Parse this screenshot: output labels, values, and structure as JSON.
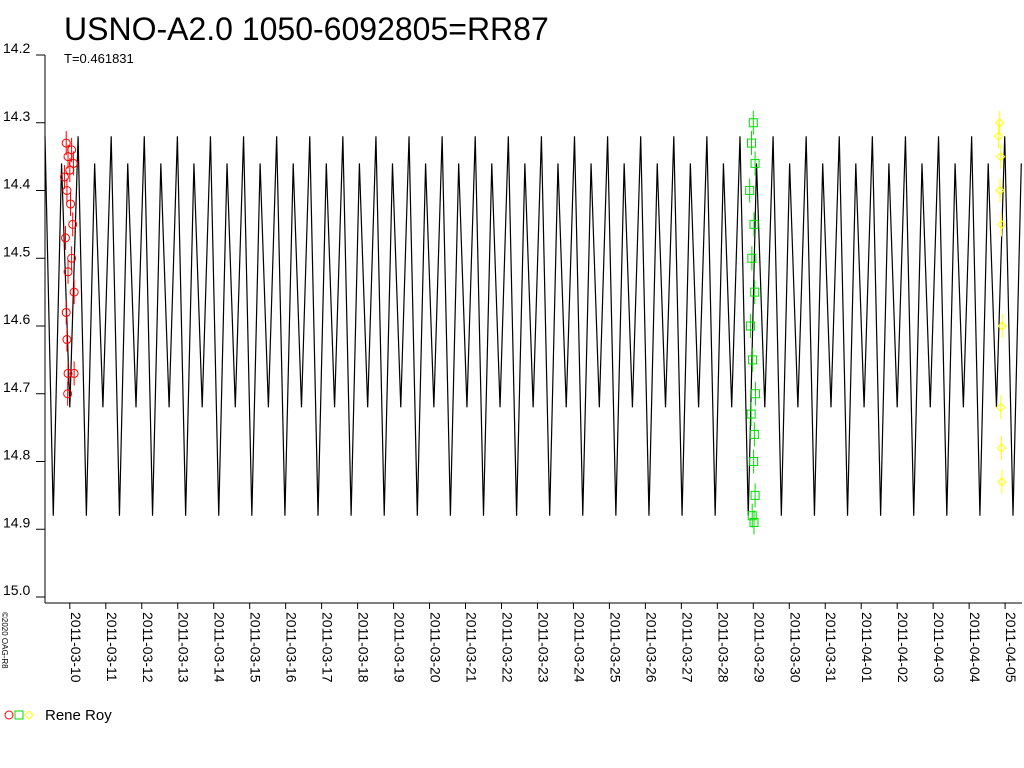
{
  "chart_data": {
    "type": "line",
    "title": "USNO-A2.0 1050-6092805=RR87",
    "subtitle": "T=0.461831",
    "credit": "©2020 OAG-R8",
    "legend": "Rene Roy",
    "y_inverted": true,
    "ylim": [
      14.2,
      15.0
    ],
    "yticks": [
      14.2,
      14.3,
      14.4,
      14.5,
      14.6,
      14.7,
      14.8,
      14.9,
      {
        "value": 15,
        "label": "15.0"
      }
    ],
    "xlim": [
      -0.69,
      26.47
    ],
    "xticks": [
      {
        "value": 0,
        "label": "2011-03-10"
      },
      {
        "value": 1,
        "label": "2011-03-11"
      },
      {
        "value": 2,
        "label": "2011-03-12"
      },
      {
        "value": 3,
        "label": "2011-03-13"
      },
      {
        "value": 4,
        "label": "2011-03-14"
      },
      {
        "value": 5,
        "label": "2011-03-15"
      },
      {
        "value": 6,
        "label": "2011-03-16"
      },
      {
        "value": 7,
        "label": "2011-03-17"
      },
      {
        "value": 8,
        "label": "2011-03-18"
      },
      {
        "value": 9,
        "label": "2011-03-19"
      },
      {
        "value": 10,
        "label": "2011-03-20"
      },
      {
        "value": 11,
        "label": "2011-03-21"
      },
      {
        "value": 12,
        "label": "2011-03-22"
      },
      {
        "value": 13,
        "label": "2011-03-23"
      },
      {
        "value": 14,
        "label": "2011-03-24"
      },
      {
        "value": 15,
        "label": "2011-03-25"
      },
      {
        "value": 16,
        "label": "2011-03-26"
      },
      {
        "value": 17,
        "label": "2011-03-27"
      },
      {
        "value": 18,
        "label": "2011-03-28"
      },
      {
        "value": 19,
        "label": "2011-03-29"
      },
      {
        "value": 20,
        "label": "2011-03-30"
      },
      {
        "value": 21,
        "label": "2011-03-31"
      },
      {
        "value": 22,
        "label": "2011-04-01"
      },
      {
        "value": 23,
        "label": "2011-04-02"
      },
      {
        "value": 24,
        "label": "2011-04-03"
      },
      {
        "value": 25,
        "label": "2011-04-04"
      },
      {
        "value": 26,
        "label": "2011-04-05"
      }
    ],
    "model": {
      "color": "#000000",
      "x": [
        -0.69,
        -0.46,
        -0.23,
        0,
        0.23,
        0.46,
        0.69,
        0.92,
        1.15,
        1.38,
        1.61,
        1.84,
        2.07,
        2.3,
        2.53,
        2.76,
        2.99,
        3.22,
        3.45,
        3.68,
        3.91,
        4.14,
        4.37,
        4.6,
        4.83,
        5.06,
        5.29,
        5.52,
        5.75,
        5.98,
        6.21,
        6.44,
        6.67,
        6.9,
        7.13,
        7.36,
        7.59,
        7.82,
        8.05,
        8.28,
        8.51,
        8.74,
        8.97,
        9.2,
        9.43,
        9.66,
        9.89,
        10.12,
        10.35,
        10.58,
        10.81,
        11.04,
        11.27,
        11.5,
        11.73,
        11.96,
        12.19,
        12.42,
        12.65,
        12.88,
        13.11,
        13.34,
        13.57,
        13.8,
        14.03,
        14.26,
        14.49,
        14.72,
        14.95,
        15.18,
        15.41,
        15.64,
        15.87,
        16.1,
        16.33,
        16.56,
        16.79,
        17.02,
        17.25,
        17.48,
        17.71,
        17.94,
        18.17,
        18.4,
        18.63,
        18.86,
        19.09,
        19.32,
        19.55,
        19.78,
        20.01,
        20.24,
        20.47,
        20.7,
        20.93,
        21.16,
        21.39,
        21.62,
        21.85,
        22.08,
        22.31,
        22.54,
        22.77,
        23,
        23.23,
        23.46,
        23.69,
        23.92,
        24.15,
        24.38,
        24.61,
        24.84,
        25.07,
        25.3,
        25.53,
        25.76,
        25.99,
        26.22,
        26.45
      ],
      "values": [
        14.32,
        14.88,
        14.36,
        14.72,
        14.32,
        14.88,
        14.36,
        14.72,
        14.32,
        14.88,
        14.36,
        14.72,
        14.32,
        14.88,
        14.36,
        14.72,
        14.32,
        14.88,
        14.36,
        14.72,
        14.32,
        14.88,
        14.36,
        14.72,
        14.32,
        14.88,
        14.36,
        14.72,
        14.32,
        14.88,
        14.36,
        14.72,
        14.32,
        14.88,
        14.36,
        14.72,
        14.32,
        14.88,
        14.36,
        14.72,
        14.32,
        14.88,
        14.36,
        14.72,
        14.32,
        14.88,
        14.36,
        14.72,
        14.32,
        14.88,
        14.36,
        14.72,
        14.32,
        14.88,
        14.36,
        14.72,
        14.32,
        14.88,
        14.36,
        14.72,
        14.32,
        14.88,
        14.36,
        14.72,
        14.32,
        14.88,
        14.36,
        14.72,
        14.32,
        14.88,
        14.36,
        14.72,
        14.32,
        14.88,
        14.36,
        14.72,
        14.32,
        14.88,
        14.36,
        14.72,
        14.32,
        14.88,
        14.36,
        14.72,
        14.32,
        14.88,
        14.36,
        14.72,
        14.32,
        14.88,
        14.36,
        14.72,
        14.32,
        14.88,
        14.36,
        14.72,
        14.32,
        14.88,
        14.36,
        14.72,
        14.32,
        14.88,
        14.36,
        14.72,
        14.32,
        14.88,
        14.36,
        14.72,
        14.32,
        14.88,
        14.36,
        14.72,
        14.32,
        14.88,
        14.36,
        14.72,
        14.32,
        14.88,
        14.36
      ]
    },
    "series": [
      {
        "color": "#ff0000",
        "marker": "circle",
        "x": [
          -0.1,
          -0.05,
          0,
          0.05,
          -0.15,
          0.1,
          -0.08,
          0.02,
          0.08,
          -0.12,
          0.05,
          -0.05,
          0.12,
          -0.1,
          -0.08,
          -0.05,
          0.12,
          -0.06
        ],
        "values": [
          14.33,
          14.35,
          14.37,
          14.34,
          14.38,
          14.36,
          14.4,
          14.42,
          14.45,
          14.47,
          14.5,
          14.52,
          14.55,
          14.58,
          14.62,
          14.67,
          14.67,
          14.7
        ]
      },
      {
        "color": "#00dd00",
        "marker": "square",
        "x": [
          19,
          18.95,
          19.05,
          18.9,
          19.02,
          18.96,
          19.04,
          18.92,
          18.98,
          19.06,
          18.94,
          19.03,
          19.01,
          19.05,
          18.97,
          19.02
        ],
        "values": [
          14.3,
          14.33,
          14.36,
          14.4,
          14.45,
          14.5,
          14.55,
          14.6,
          14.65,
          14.7,
          14.73,
          14.76,
          14.8,
          14.85,
          14.88,
          14.89
        ]
      },
      {
        "color": "#ffff00",
        "marker": "diamond",
        "x": [
          25.85,
          25.82,
          25.88,
          25.86,
          25.9,
          25.92,
          25.88,
          25.9,
          25.91
        ],
        "values": [
          14.3,
          14.32,
          14.35,
          14.4,
          14.45,
          14.6,
          14.72,
          14.78,
          14.83
        ]
      }
    ]
  }
}
